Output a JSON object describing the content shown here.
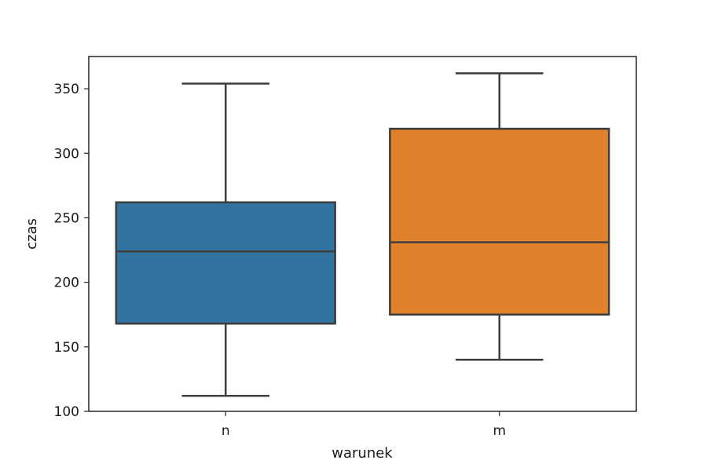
{
  "chart_data": {
    "type": "box",
    "xlabel": "warunek",
    "ylabel": "czas",
    "ylim": [
      100,
      375
    ],
    "yticks": [
      100,
      150,
      200,
      250,
      300,
      350
    ],
    "grid": false,
    "categories": [
      "n",
      "m"
    ],
    "boxes": [
      {
        "category": "n",
        "whisker_low": 112,
        "q1": 168,
        "median": 224,
        "q3": 262,
        "whisker_high": 354,
        "color": "#3274a1"
      },
      {
        "category": "m",
        "whisker_low": 140,
        "q1": 175,
        "median": 231,
        "q3": 319,
        "whisker_high": 362,
        "color": "#e1812c"
      }
    ]
  },
  "colors": {
    "box_edge": "#3d3d3d",
    "axis": "#262626"
  }
}
